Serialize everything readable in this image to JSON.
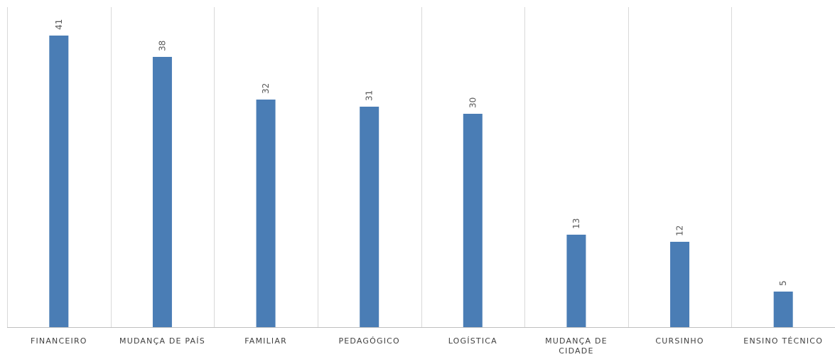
{
  "chart_data": {
    "type": "bar",
    "categories": [
      "FINANCEIRO",
      "MUDANÇA DE PAÍS",
      "FAMILIAR",
      "PEDAGÓGICO",
      "LOGÍSTICA",
      "MUDANÇA DE CIDADE",
      "CURSINHO",
      "ENSINO TÉCNICO"
    ],
    "values": [
      41,
      38,
      32,
      31,
      30,
      13,
      12,
      5
    ],
    "title": "",
    "xlabel": "",
    "ylabel": "",
    "ylim": [
      0,
      41
    ],
    "grid": "vertical category separators",
    "legend": "none",
    "data_labels": "rotated, above bars",
    "colors": {
      "bar": "#4a7db5",
      "grid": "#d9d9d9",
      "axis": "#bfbfbf",
      "text": "#404040"
    }
  }
}
